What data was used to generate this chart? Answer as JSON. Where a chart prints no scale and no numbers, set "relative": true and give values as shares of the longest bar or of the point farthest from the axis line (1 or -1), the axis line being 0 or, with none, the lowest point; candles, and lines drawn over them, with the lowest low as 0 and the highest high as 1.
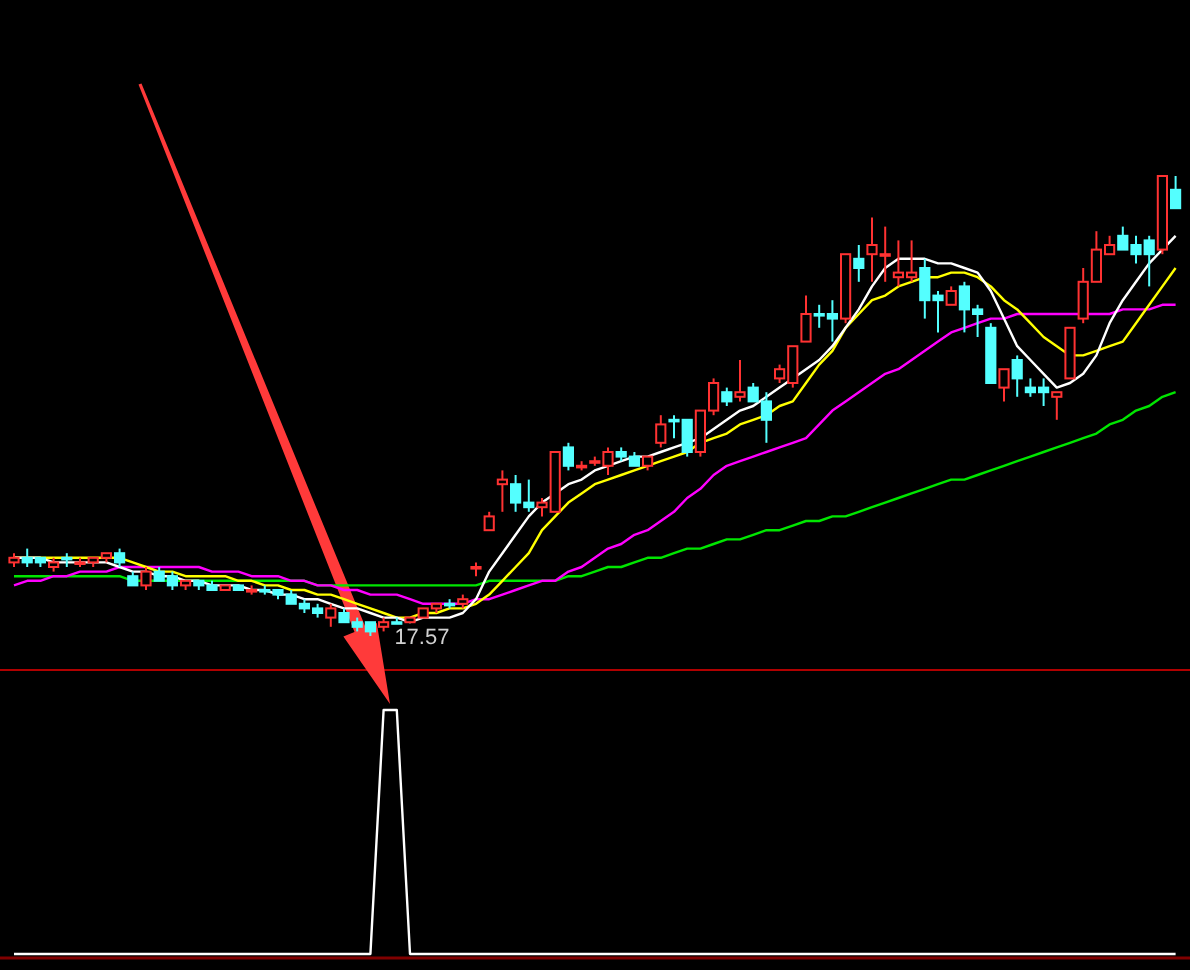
{
  "chart_data": [
    {
      "type": "candlestick",
      "relative": true,
      "categories": [
        null,
        null,
        null,
        null,
        null,
        null,
        null,
        null,
        null,
        null,
        null,
        null,
        null,
        null,
        null,
        null,
        null,
        null,
        null,
        null,
        null,
        null,
        null,
        null,
        null,
        null,
        null,
        null,
        null,
        null,
        null,
        null,
        null,
        null,
        null,
        null,
        null,
        null,
        null,
        null,
        null,
        null,
        null,
        null,
        null,
        null,
        null,
        null,
        null,
        null,
        null,
        null,
        null,
        null,
        null,
        null,
        null,
        null,
        null,
        null,
        null,
        null,
        null,
        null,
        null,
        null,
        null,
        null,
        null,
        null,
        null,
        null,
        null,
        null,
        null,
        null,
        null,
        null,
        null,
        null,
        null,
        null,
        null,
        null,
        null,
        null,
        null,
        null,
        null
      ],
      "ohlc": [
        [
          0.16,
          0.18,
          0.15,
          0.17
        ],
        [
          0.17,
          0.19,
          0.15,
          0.16
        ],
        [
          0.17,
          0.17,
          0.15,
          0.16
        ],
        [
          0.15,
          0.17,
          0.14,
          0.16
        ],
        [
          0.17,
          0.18,
          0.15,
          0.17
        ],
        [
          0.16,
          0.17,
          0.15,
          0.16
        ],
        [
          0.16,
          0.17,
          0.15,
          0.17
        ],
        [
          0.17,
          0.18,
          0.16,
          0.18
        ],
        [
          0.18,
          0.19,
          0.15,
          0.16
        ],
        [
          0.13,
          0.14,
          0.11,
          0.11
        ],
        [
          0.11,
          0.15,
          0.1,
          0.14
        ],
        [
          0.14,
          0.15,
          0.12,
          0.12
        ],
        [
          0.13,
          0.14,
          0.1,
          0.11
        ],
        [
          0.11,
          0.12,
          0.1,
          0.12
        ],
        [
          0.12,
          0.12,
          0.1,
          0.11
        ],
        [
          0.11,
          0.12,
          0.1,
          0.1
        ],
        [
          0.1,
          0.11,
          0.1,
          0.11
        ],
        [
          0.11,
          0.11,
          0.1,
          0.1
        ],
        [
          0.1,
          0.11,
          0.09,
          0.1
        ],
        [
          0.1,
          0.11,
          0.09,
          0.1
        ],
        [
          0.1,
          0.1,
          0.08,
          0.09
        ],
        [
          0.09,
          0.1,
          0.07,
          0.07
        ],
        [
          0.07,
          0.08,
          0.05,
          0.06
        ],
        [
          0.06,
          0.07,
          0.04,
          0.05
        ],
        [
          0.04,
          0.07,
          0.02,
          0.06
        ],
        [
          0.05,
          0.06,
          0.03,
          0.03
        ],
        [
          0.03,
          0.04,
          0.01,
          0.02
        ],
        [
          0.03,
          0.03,
          0,
          0.01
        ],
        [
          0.02,
          0.04,
          0.01,
          0.03
        ],
        [
          0.03,
          0.04,
          0.03,
          0.03
        ],
        [
          0.03,
          0.04,
          0.03,
          0.04
        ],
        [
          0.04,
          0.06,
          0.04,
          0.06
        ],
        [
          0.06,
          0.07,
          0.05,
          0.07
        ],
        [
          0.07,
          0.08,
          0.06,
          0.07
        ],
        [
          0.07,
          0.09,
          0.06,
          0.08
        ],
        [
          0.15,
          0.16,
          0.13,
          0.15
        ],
        [
          0.23,
          0.27,
          0.23,
          0.26
        ],
        [
          0.33,
          0.36,
          0.27,
          0.34
        ],
        [
          0.33,
          0.35,
          0.27,
          0.29
        ],
        [
          0.29,
          0.34,
          0.27,
          0.28
        ],
        [
          0.28,
          0.3,
          0.26,
          0.29
        ],
        [
          0.27,
          0.4,
          0.27,
          0.4
        ],
        [
          0.41,
          0.42,
          0.36,
          0.37
        ],
        [
          0.37,
          0.38,
          0.36,
          0.37
        ],
        [
          0.38,
          0.39,
          0.37,
          0.38
        ],
        [
          0.37,
          0.41,
          0.35,
          0.4
        ],
        [
          0.4,
          0.41,
          0.38,
          0.39
        ],
        [
          0.39,
          0.4,
          0.37,
          0.37
        ],
        [
          0.37,
          0.39,
          0.36,
          0.39
        ],
        [
          0.42,
          0.48,
          0.41,
          0.46
        ],
        [
          0.47,
          0.48,
          0.43,
          0.47
        ],
        [
          0.47,
          0.47,
          0.39,
          0.4
        ],
        [
          0.4,
          0.49,
          0.39,
          0.49
        ],
        [
          0.49,
          0.56,
          0.48,
          0.55
        ],
        [
          0.53,
          0.54,
          0.5,
          0.51
        ],
        [
          0.52,
          0.6,
          0.51,
          0.53
        ],
        [
          0.54,
          0.55,
          0.51,
          0.51
        ],
        [
          0.51,
          0.53,
          0.42,
          0.47
        ],
        [
          0.56,
          0.59,
          0.55,
          0.58
        ],
        [
          0.55,
          0.63,
          0.54,
          0.63
        ],
        [
          0.64,
          0.74,
          0.64,
          0.7
        ],
        [
          0.7,
          0.72,
          0.67,
          0.7
        ],
        [
          0.7,
          0.73,
          0.64,
          0.69
        ],
        [
          0.69,
          0.83,
          0.68,
          0.83
        ],
        [
          0.82,
          0.85,
          0.77,
          0.8
        ],
        [
          0.83,
          0.91,
          0.77,
          0.85
        ],
        [
          0.83,
          0.89,
          0.77,
          0.83
        ],
        [
          0.78,
          0.86,
          0.76,
          0.79
        ],
        [
          0.78,
          0.86,
          0.77,
          0.79
        ],
        [
          0.8,
          0.82,
          0.69,
          0.73
        ],
        [
          0.74,
          0.75,
          0.66,
          0.73
        ],
        [
          0.72,
          0.76,
          0.72,
          0.75
        ],
        [
          0.76,
          0.77,
          0.66,
          0.71
        ],
        [
          0.71,
          0.72,
          0.65,
          0.7
        ],
        [
          0.67,
          0.68,
          0.55,
          0.55
        ],
        [
          0.54,
          0.58,
          0.51,
          0.58
        ],
        [
          0.6,
          0.61,
          0.52,
          0.56
        ],
        [
          0.54,
          0.56,
          0.52,
          0.53
        ],
        [
          0.54,
          0.56,
          0.5,
          0.53
        ],
        [
          0.52,
          0.53,
          0.47,
          0.53
        ],
        [
          0.56,
          0.67,
          0.56,
          0.67
        ],
        [
          0.69,
          0.8,
          0.68,
          0.77
        ],
        [
          0.77,
          0.88,
          0.77,
          0.84
        ],
        [
          0.83,
          0.87,
          0.83,
          0.85
        ],
        [
          0.87,
          0.89,
          0.84,
          0.84
        ],
        [
          0.85,
          0.87,
          0.81,
          0.83
        ],
        [
          0.86,
          0.87,
          0.76,
          0.83
        ],
        [
          0.84,
          1,
          0.83,
          1
        ],
        [
          0.97,
          1,
          0.93,
          0.93
        ]
      ],
      "colors": [
        "#ff3232",
        "#54ffff",
        "#54ffff",
        "#ff3232",
        "#54ffff",
        "#ff3232",
        "#ff3232",
        "#ff3232",
        "#54ffff",
        "#54ffff",
        "#ff3232",
        "#54ffff",
        "#54ffff",
        "#ff3232",
        "#54ffff",
        "#54ffff",
        "#ff3232",
        "#54ffff",
        "#ff3232",
        "#54ffff",
        "#54ffff",
        "#54ffff",
        "#54ffff",
        "#54ffff",
        "#ff3232",
        "#54ffff",
        "#54ffff",
        "#54ffff",
        "#ff3232",
        "#54ffff",
        "#ff3232",
        "#ff3232",
        "#ff3232",
        "#54ffff",
        "#ff3232",
        "#ff3232",
        "#ff3232",
        "#ff3232",
        "#54ffff",
        "#54ffff",
        "#ff3232",
        "#ff3232",
        "#54ffff",
        "#ff3232",
        "#ff3232",
        "#ff3232",
        "#54ffff",
        "#54ffff",
        "#ff3232",
        "#ff3232",
        "#54ffff",
        "#54ffff",
        "#ff3232",
        "#ff3232",
        "#54ffff",
        "#ff3232",
        "#54ffff",
        "#54ffff",
        "#ff3232",
        "#ff3232",
        "#ff3232",
        "#54ffff",
        "#54ffff",
        "#ff3232",
        "#54ffff",
        "#ff3232",
        "#ff3232",
        "#ff3232",
        "#ff3232",
        "#54ffff",
        "#54ffff",
        "#ff3232",
        "#54ffff",
        "#54ffff",
        "#54ffff",
        "#ff3232",
        "#54ffff",
        "#54ffff",
        "#54ffff",
        "#ff3232",
        "#ff3232",
        "#ff3232",
        "#ff3232",
        "#ff3232",
        "#54ffff",
        "#54ffff",
        "#54ffff",
        "#ff3232",
        "#54ffff"
      ],
      "series": [
        {
          "type": "line",
          "color": "#00e600",
          "values": [
            0.13,
            0.13,
            0.13,
            0.13,
            0.13,
            0.13,
            0.13,
            0.13,
            0.13,
            0.12,
            0.12,
            0.12,
            0.12,
            0.12,
            0.12,
            0.12,
            0.12,
            0.12,
            0.12,
            0.12,
            0.12,
            0.12,
            0.12,
            0.11,
            0.11,
            0.11,
            0.11,
            0.11,
            0.11,
            0.11,
            0.11,
            0.11,
            0.11,
            0.11,
            0.11,
            0.11,
            0.12,
            0.12,
            0.12,
            0.12,
            0.12,
            0.12,
            0.13,
            0.13,
            0.14,
            0.15,
            0.15,
            0.16,
            0.17,
            0.17,
            0.18,
            0.19,
            0.19,
            0.2,
            0.21,
            0.21,
            0.22,
            0.23,
            0.23,
            0.24,
            0.25,
            0.25,
            0.26,
            0.26,
            0.27,
            0.28,
            0.29,
            0.3,
            0.31,
            0.32,
            0.33,
            0.34,
            0.34,
            0.35,
            0.36,
            0.37,
            0.38,
            0.39,
            0.4,
            0.41,
            0.42,
            0.43,
            0.44,
            0.46,
            0.47,
            0.49,
            0.5,
            0.52,
            0.53
          ]
        },
        {
          "type": "line",
          "color": "#ff00ff",
          "values": [
            0.11,
            0.12,
            0.12,
            0.13,
            0.13,
            0.14,
            0.14,
            0.14,
            0.15,
            0.15,
            0.15,
            0.15,
            0.15,
            0.15,
            0.15,
            0.14,
            0.14,
            0.14,
            0.13,
            0.13,
            0.13,
            0.12,
            0.12,
            0.11,
            0.11,
            0.1,
            0.1,
            0.09,
            0.09,
            0.09,
            0.08,
            0.07,
            0.07,
            0.07,
            0.07,
            0.08,
            0.08,
            0.09,
            0.1,
            0.11,
            0.12,
            0.12,
            0.14,
            0.15,
            0.17,
            0.19,
            0.2,
            0.22,
            0.23,
            0.25,
            0.27,
            0.3,
            0.32,
            0.35,
            0.37,
            0.38,
            0.39,
            0.4,
            0.41,
            0.42,
            0.43,
            0.46,
            0.49,
            0.51,
            0.53,
            0.55,
            0.57,
            0.58,
            0.6,
            0.62,
            0.64,
            0.66,
            0.67,
            0.68,
            0.69,
            0.69,
            0.7,
            0.7,
            0.7,
            0.7,
            0.7,
            0.7,
            0.7,
            0.7,
            0.71,
            0.71,
            0.71,
            0.72,
            0.72
          ]
        },
        {
          "type": "line",
          "color": "#ffff00",
          "values": [
            0.17,
            0.17,
            0.17,
            0.17,
            0.17,
            0.17,
            0.17,
            0.17,
            0.17,
            0.16,
            0.15,
            0.14,
            0.14,
            0.13,
            0.13,
            0.13,
            0.13,
            0.12,
            0.12,
            0.11,
            0.11,
            0.1,
            0.1,
            0.09,
            0.09,
            0.08,
            0.07,
            0.06,
            0.05,
            0.04,
            0.04,
            0.05,
            0.05,
            0.06,
            0.06,
            0.07,
            0.09,
            0.12,
            0.15,
            0.18,
            0.23,
            0.26,
            0.29,
            0.31,
            0.33,
            0.34,
            0.35,
            0.36,
            0.37,
            0.38,
            0.39,
            0.4,
            0.42,
            0.43,
            0.44,
            0.46,
            0.47,
            0.48,
            0.5,
            0.51,
            0.55,
            0.59,
            0.62,
            0.67,
            0.7,
            0.73,
            0.74,
            0.76,
            0.77,
            0.78,
            0.78,
            0.79,
            0.79,
            0.78,
            0.76,
            0.73,
            0.71,
            0.68,
            0.65,
            0.63,
            0.61,
            0.61,
            0.62,
            0.63,
            0.64,
            0.68,
            0.72,
            0.76,
            0.8
          ]
        },
        {
          "type": "line",
          "color": "#ffffff",
          "values": [
            0.17,
            0.17,
            0.17,
            0.16,
            0.16,
            0.16,
            0.16,
            0.16,
            0.15,
            0.14,
            0.14,
            0.13,
            0.13,
            0.12,
            0.12,
            0.11,
            0.11,
            0.11,
            0.1,
            0.1,
            0.09,
            0.09,
            0.08,
            0.08,
            0.07,
            0.06,
            0.06,
            0.05,
            0.04,
            0.04,
            0.03,
            0.04,
            0.04,
            0.04,
            0.05,
            0.08,
            0.14,
            0.18,
            0.22,
            0.26,
            0.29,
            0.31,
            0.33,
            0.34,
            0.36,
            0.37,
            0.38,
            0.39,
            0.39,
            0.4,
            0.41,
            0.42,
            0.43,
            0.45,
            0.47,
            0.49,
            0.5,
            0.52,
            0.54,
            0.56,
            0.58,
            0.6,
            0.63,
            0.67,
            0.71,
            0.76,
            0.8,
            0.82,
            0.82,
            0.82,
            0.81,
            0.81,
            0.8,
            0.79,
            0.75,
            0.69,
            0.63,
            0.6,
            0.57,
            0.54,
            0.55,
            0.57,
            0.61,
            0.68,
            0.73,
            0.77,
            0.81,
            0.84,
            0.87
          ]
        }
      ],
      "annotations": [
        "17.57"
      ]
    },
    {
      "type": "line",
      "relative": true,
      "categories": [
        null,
        null,
        null,
        null,
        null,
        null,
        null,
        null,
        null,
        null,
        null,
        null,
        null,
        null,
        null,
        null,
        null,
        null,
        null,
        null,
        null,
        null,
        null,
        null,
        null,
        null,
        null,
        null,
        null,
        null,
        null,
        null,
        null,
        null,
        null,
        null,
        null,
        null,
        null,
        null,
        null,
        null,
        null,
        null,
        null,
        null,
        null,
        null,
        null,
        null,
        null,
        null,
        null,
        null,
        null,
        null,
        null,
        null,
        null,
        null,
        null,
        null,
        null,
        null,
        null,
        null,
        null,
        null,
        null,
        null,
        null,
        null,
        null,
        null,
        null,
        null,
        null,
        null,
        null,
        null,
        null,
        null,
        null,
        null,
        null,
        null,
        null,
        null,
        null
      ],
      "series": [
        {
          "color": "#ffffff",
          "values": [
            0,
            0,
            0,
            0,
            0,
            0,
            0,
            0,
            0,
            0,
            0,
            0,
            0,
            0,
            0,
            0,
            0,
            0,
            0,
            0,
            0,
            0,
            0,
            0,
            0,
            0,
            0,
            0,
            1,
            1,
            0,
            0,
            0,
            0,
            0,
            0,
            0,
            0,
            0,
            0,
            0,
            0,
            0,
            0,
            0,
            0,
            0,
            0,
            0,
            0,
            0,
            0,
            0,
            0,
            0,
            0,
            0,
            0,
            0,
            0,
            0,
            0,
            0,
            0,
            0,
            0,
            0,
            0,
            0,
            0,
            0,
            0,
            0,
            0,
            0,
            0,
            0,
            0,
            0,
            0,
            0,
            0,
            0,
            0,
            0,
            0,
            0,
            0,
            0
          ]
        }
      ]
    }
  ]
}
